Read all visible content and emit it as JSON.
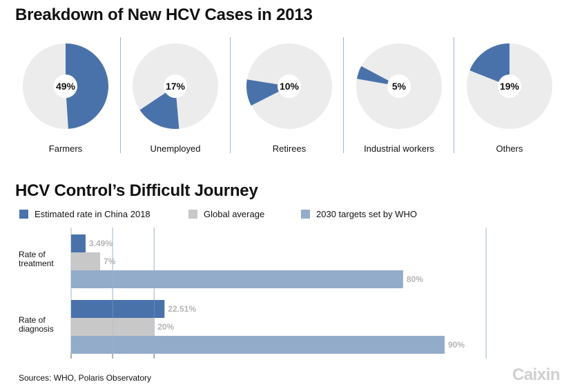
{
  "titles": {
    "pies": "Breakdown of New HCV Cases in 2013",
    "bars": "HCV Control’s Difficult Journey"
  },
  "colors": {
    "dark_blue": "#4a72aa",
    "gray": "#c8c8c8",
    "light_blue": "#93acca",
    "pie_bg": "#ececec",
    "value_text": "#b5b5b5"
  },
  "chart_data": [
    {
      "type": "pie",
      "title": "Breakdown of New HCV Cases in 2013",
      "slices": [
        {
          "label": "Farmers",
          "value": 49,
          "value_label": "49%"
        },
        {
          "label": "Unemployed",
          "value": 17,
          "value_label": "17%"
        },
        {
          "label": "Retirees",
          "value": 10,
          "value_label": "10%"
        },
        {
          "label": "Industrial workers",
          "value": 5,
          "value_label": "5%"
        },
        {
          "label": "Others",
          "value": 19,
          "value_label": "19%"
        }
      ]
    },
    {
      "type": "bar",
      "orientation": "horizontal",
      "title": "HCV Control’s Difficult Journey",
      "categories": [
        "Rate of\ntreatment",
        "Rate of\ndiagnosis"
      ],
      "series": [
        {
          "name": "Estimated rate in China 2018",
          "values": [
            3.49,
            22.51
          ],
          "labels": [
            "3.49%",
            "22.51%"
          ],
          "color": "#4a72aa"
        },
        {
          "name": "Global average",
          "values": [
            7,
            20
          ],
          "labels": [
            "7%",
            "20%"
          ],
          "color": "#c8c8c8"
        },
        {
          "name": "2030 targets set by WHO",
          "values": [
            80,
            90
          ],
          "labels": [
            "80%",
            "90%"
          ],
          "color": "#93acca"
        }
      ],
      "xlim": [
        0,
        100
      ],
      "legend": "top",
      "grid": true
    }
  ],
  "footer": {
    "source": "Sources: WHO, Polaris Observatory",
    "logo": "Caixin"
  }
}
